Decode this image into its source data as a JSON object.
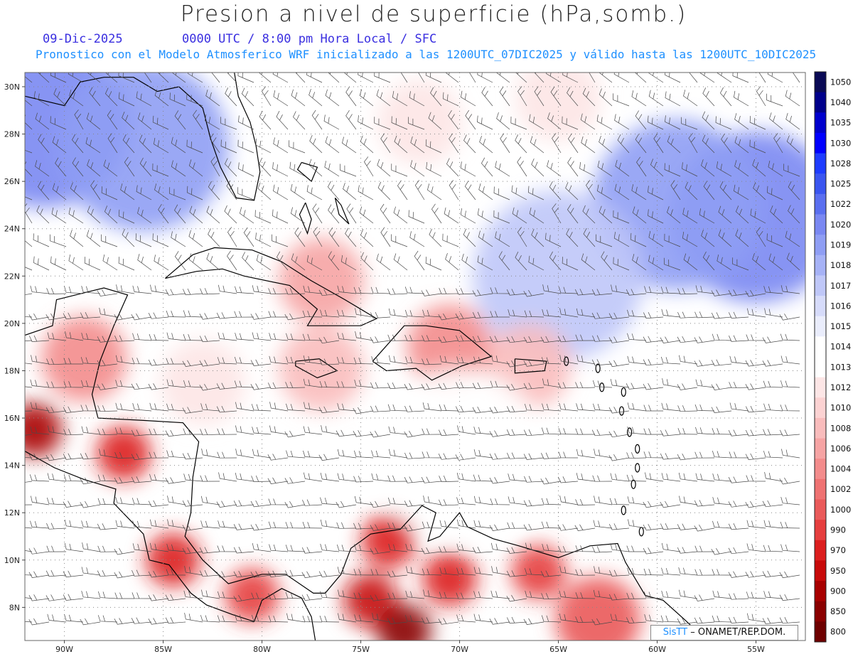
{
  "header": {
    "title": "Presion a nivel de superficie (hPa,somb.)",
    "date": "09-Dic-2025",
    "time": "0000 UTC / 8:00 pm Hora Local / SFC",
    "subtitle": "Pronostico con el Modelo Atmosferico WRF inicializado a las 1200UTC_07DIC2025 y válido hasta las  1200UTC_10DIC2025"
  },
  "map": {
    "lon_range": [
      -92,
      -52.5
    ],
    "lat_range": [
      6.6,
      30.6
    ],
    "lat_ticks": [
      "30N",
      "28N",
      "26N",
      "24N",
      "22N",
      "20N",
      "18N",
      "16N",
      "14N",
      "12N",
      "10N",
      "8N"
    ],
    "lon_ticks": [
      "90W",
      "85W",
      "80W",
      "75W",
      "70W",
      "65W",
      "60W",
      "55W"
    ],
    "wind_barbs_shown": true,
    "pressure_field": [
      {
        "lon": -91,
        "lat": 28.5,
        "hPa": 1020
      },
      {
        "lon": -86,
        "lat": 27.5,
        "hPa": 1019
      },
      {
        "lon": -55,
        "lat": 24.5,
        "hPa": 1020
      },
      {
        "lon": -59,
        "lat": 25.0,
        "hPa": 1019
      },
      {
        "lon": -65,
        "lat": 22.0,
        "hPa": 1017
      },
      {
        "lon": -72,
        "lat": 28.5,
        "hPa": 1012
      },
      {
        "lon": -65,
        "lat": 29.5,
        "hPa": 1012
      },
      {
        "lon": -77,
        "lat": 21.8,
        "hPa": 1006
      },
      {
        "lon": -70.5,
        "lat": 19.0,
        "hPa": 1004
      },
      {
        "lon": -77,
        "lat": 18.1,
        "hPa": 1008
      },
      {
        "lon": -66.5,
        "lat": 18.2,
        "hPa": 1008
      },
      {
        "lon": -87,
        "lat": 14.5,
        "hPa": 970
      },
      {
        "lon": -91.5,
        "lat": 15.5,
        "hPa": 900
      },
      {
        "lon": -89,
        "lat": 18.5,
        "hPa": 1004
      },
      {
        "lon": -84.5,
        "lat": 10.0,
        "hPa": 970
      },
      {
        "lon": -80.5,
        "lat": 8.5,
        "hPa": 990
      },
      {
        "lon": -74.5,
        "lat": 8.3,
        "hPa": 950
      },
      {
        "lon": -72.8,
        "lat": 7.0,
        "hPa": 850
      },
      {
        "lon": -73.6,
        "lat": 10.8,
        "hPa": 970
      },
      {
        "lon": -70.5,
        "lat": 9.2,
        "hPa": 970
      },
      {
        "lon": -66,
        "lat": 9.5,
        "hPa": 990
      },
      {
        "lon": -63,
        "lat": 7.5,
        "hPa": 1000
      },
      {
        "lon": -70,
        "lat": 14.5,
        "hPa": 1013
      },
      {
        "lon": -83,
        "lat": 17.5,
        "hPa": 1012
      }
    ]
  },
  "colorbar": {
    "levels": [
      "1050",
      "1040",
      "1035",
      "1030",
      "1028",
      "1025",
      "1022",
      "1020",
      "1019",
      "1018",
      "1017",
      "1016",
      "1015",
      "1014",
      "1013",
      "1012",
      "1010",
      "1008",
      "1006",
      "1004",
      "1002",
      "1000",
      "990",
      "970",
      "950",
      "900",
      "850",
      "800"
    ],
    "colors": [
      "#0a0a55",
      "#00008b",
      "#0000cd",
      "#0000ff",
      "#1e3cff",
      "#3a55f0",
      "#5a6ff0",
      "#7a88f2",
      "#8f9ef4",
      "#a6b2f6",
      "#bfc7f8",
      "#d6dbfa",
      "#eaedfc",
      "#ffffff",
      "#ffffff",
      "#fde6e6",
      "#fcd2d2",
      "#f9bcbc",
      "#f6a4a4",
      "#f38c8c",
      "#ef7272",
      "#ea5a5a",
      "#e63e3e",
      "#dc1e1e",
      "#c80a0a",
      "#a80000",
      "#8a0000",
      "#6e0000"
    ]
  },
  "credit": {
    "logo": "SisTT",
    "org": "– ONAMET/REP.DOM."
  }
}
